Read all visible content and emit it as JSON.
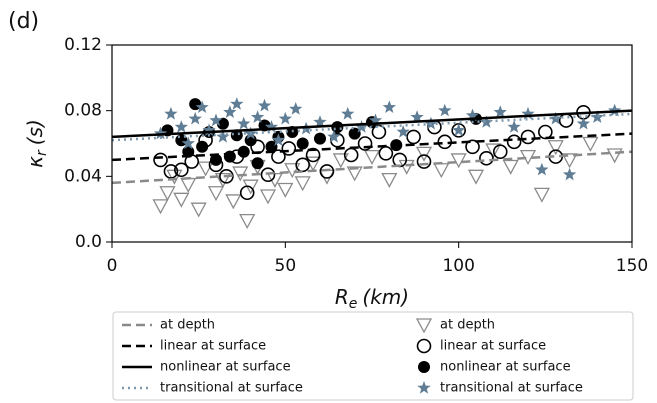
{
  "chart_data": {
    "type": "scatter",
    "panel_label": "(d)",
    "xlabel": [
      "R",
      "e",
      "(km)"
    ],
    "ylabel": [
      "κ",
      "r",
      "(s)"
    ],
    "xlim": [
      0,
      150
    ],
    "ylim": [
      0,
      0.12
    ],
    "xticks": [
      0,
      50,
      100,
      150
    ],
    "yticks": [
      {
        "value": 0,
        "label": "0.0"
      },
      0.04,
      0.08,
      0.12
    ],
    "legend": "below",
    "series": [
      {
        "name": "at depth",
        "kind": "line",
        "style": "dashed",
        "color": "#8a8a8a",
        "x": [
          0,
          150
        ],
        "values": [
          0.036,
          0.055
        ]
      },
      {
        "name": "linear at surface",
        "kind": "line",
        "style": "dashed",
        "color": "#000000",
        "x": [
          0,
          150
        ],
        "values": [
          0.05,
          0.066
        ]
      },
      {
        "name": "nonlinear at surface",
        "kind": "line",
        "style": "solid",
        "color": "#000000",
        "x": [
          0,
          150
        ],
        "values": [
          0.064,
          0.08
        ]
      },
      {
        "name": "transitional at surface",
        "kind": "line",
        "style": "dotted",
        "color": "#7d98ad",
        "x": [
          0,
          150
        ],
        "values": [
          0.062,
          0.078
        ]
      },
      {
        "name": "at depth",
        "kind": "marker",
        "marker": "triangle",
        "color": "#8a8a8a",
        "x": [
          14,
          16,
          18,
          20,
          22,
          25,
          27,
          30,
          32,
          35,
          37,
          39,
          40,
          42,
          45,
          47,
          50,
          52,
          55,
          58,
          62,
          66,
          70,
          75,
          80,
          85,
          90,
          95,
          100,
          105,
          110,
          115,
          120,
          124,
          128,
          132,
          138,
          145
        ],
        "values": [
          0.022,
          0.03,
          0.04,
          0.026,
          0.035,
          0.02,
          0.045,
          0.03,
          0.038,
          0.025,
          0.042,
          0.013,
          0.034,
          0.046,
          0.028,
          0.038,
          0.032,
          0.044,
          0.036,
          0.048,
          0.04,
          0.05,
          0.042,
          0.052,
          0.038,
          0.046,
          0.054,
          0.044,
          0.05,
          0.04,
          0.056,
          0.046,
          0.052,
          0.029,
          0.058,
          0.05,
          0.06,
          0.053
        ]
      },
      {
        "name": "linear at surface",
        "kind": "marker",
        "marker": "circle",
        "color": "#000000",
        "x": [
          14,
          17,
          20,
          23,
          27,
          30,
          33,
          36,
          39,
          42,
          45,
          48,
          51,
          55,
          58,
          62,
          65,
          69,
          73,
          77,
          79,
          83,
          87,
          90,
          93,
          96,
          100,
          104,
          108,
          112,
          116,
          120,
          125,
          128,
          131,
          136
        ],
        "values": [
          0.05,
          0.043,
          0.044,
          0.049,
          0.062,
          0.047,
          0.04,
          0.052,
          0.03,
          0.058,
          0.041,
          0.052,
          0.057,
          0.047,
          0.053,
          0.043,
          0.062,
          0.053,
          0.06,
          0.067,
          0.054,
          0.05,
          0.064,
          0.049,
          0.07,
          0.061,
          0.068,
          0.058,
          0.051,
          0.055,
          0.061,
          0.064,
          0.067,
          0.052,
          0.074,
          0.079
        ]
      },
      {
        "name": "nonlinear at surface",
        "kind": "marker",
        "marker": "dot",
        "color": "#000000",
        "x": [
          16,
          20,
          22,
          24,
          26,
          28,
          30,
          32,
          34,
          36,
          38,
          40,
          42,
          44,
          46,
          48,
          52,
          55,
          60,
          65,
          70,
          75,
          82,
          105
        ],
        "values": [
          0.068,
          0.062,
          0.055,
          0.084,
          0.058,
          0.067,
          0.05,
          0.072,
          0.052,
          0.065,
          0.055,
          0.062,
          0.048,
          0.071,
          0.058,
          0.064,
          0.067,
          0.06,
          0.063,
          0.07,
          0.066,
          0.073,
          0.059,
          0.075
        ]
      },
      {
        "name": "transitional at surface",
        "kind": "marker",
        "marker": "star",
        "color": "#5f7d95",
        "x": [
          14,
          17,
          20,
          22,
          24,
          26,
          28,
          30,
          32,
          34,
          36,
          38,
          40,
          42,
          44,
          46,
          48,
          50,
          53,
          56,
          60,
          64,
          68,
          72,
          76,
          80,
          84,
          88,
          92,
          96,
          100,
          104,
          108,
          112,
          116,
          120,
          124,
          128,
          132,
          136,
          140,
          145
        ],
        "values": [
          0.066,
          0.078,
          0.07,
          0.06,
          0.075,
          0.082,
          0.068,
          0.074,
          0.064,
          0.079,
          0.084,
          0.072,
          0.066,
          0.076,
          0.083,
          0.07,
          0.062,
          0.075,
          0.081,
          0.069,
          0.073,
          0.064,
          0.078,
          0.07,
          0.074,
          0.082,
          0.067,
          0.076,
          0.072,
          0.08,
          0.068,
          0.077,
          0.073,
          0.079,
          0.07,
          0.078,
          0.044,
          0.075,
          0.041,
          0.072,
          0.076,
          0.08
        ]
      }
    ]
  }
}
